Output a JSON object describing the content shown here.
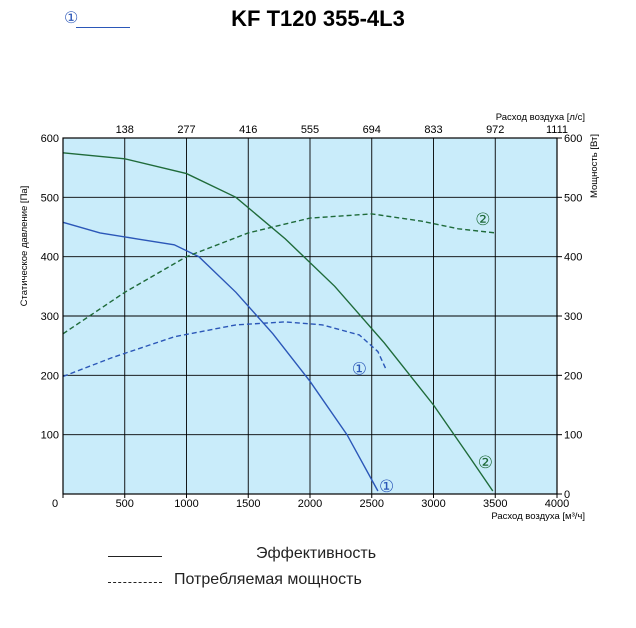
{
  "title": "KF T120 355-4L3",
  "legend_top": {
    "marker": "①"
  },
  "bottom_legend": {
    "efficiency": "Эффективность",
    "power": "Потребляемая мощность"
  },
  "colors": {
    "bg": "#c9ecfa",
    "blue": "#2b57b8",
    "green": "#1f6b3a",
    "grid": "#000000"
  },
  "chart_data": {
    "type": "line",
    "x_bottom": {
      "label": "Расход воздуха [м³/ч]",
      "ticks": [
        0,
        500,
        1000,
        1500,
        2000,
        2500,
        3000,
        3500,
        4000
      ],
      "range": [
        0,
        4000
      ]
    },
    "x_top": {
      "label": "Расход воздуха [л/с]",
      "ticks": [
        "138",
        "277",
        "416",
        "555",
        "694",
        "833",
        "972",
        "1111"
      ]
    },
    "y_left": {
      "label": "Статическое давление [Па]",
      "ticks": [
        100,
        200,
        300,
        400,
        500,
        600
      ],
      "range": [
        0,
        600
      ]
    },
    "y_right": {
      "label": "Мощность [Вт]",
      "ticks": [
        0,
        100,
        200,
        300,
        400,
        500,
        600
      ],
      "range": [
        0,
        600
      ]
    },
    "grid": true,
    "series": [
      {
        "kind": "pressure",
        "marker": "①",
        "color": "#2b57b8",
        "dashed": false,
        "points": [
          [
            0,
            458
          ],
          [
            300,
            440
          ],
          [
            600,
            430
          ],
          [
            900,
            420
          ],
          [
            1100,
            400
          ],
          [
            1400,
            340
          ],
          [
            1700,
            270
          ],
          [
            2000,
            190
          ],
          [
            2300,
            100
          ],
          [
            2550,
            5
          ]
        ]
      },
      {
        "kind": "pressure",
        "marker": "②",
        "color": "#1f6b3a",
        "dashed": false,
        "points": [
          [
            0,
            575
          ],
          [
            500,
            565
          ],
          [
            1000,
            540
          ],
          [
            1400,
            500
          ],
          [
            1800,
            430
          ],
          [
            2200,
            350
          ],
          [
            2600,
            255
          ],
          [
            3000,
            150
          ],
          [
            3300,
            60
          ],
          [
            3480,
            5
          ]
        ]
      },
      {
        "kind": "power",
        "marker": "①",
        "color": "#2b57b8",
        "dashed": true,
        "points": [
          [
            0,
            198
          ],
          [
            400,
            230
          ],
          [
            900,
            265
          ],
          [
            1400,
            285
          ],
          [
            1800,
            290
          ],
          [
            2100,
            285
          ],
          [
            2400,
            268
          ],
          [
            2550,
            240
          ],
          [
            2620,
            208
          ]
        ]
      },
      {
        "kind": "power",
        "marker": "②",
        "color": "#1f6b3a",
        "dashed": true,
        "points": [
          [
            0,
            270
          ],
          [
            500,
            340
          ],
          [
            1000,
            400
          ],
          [
            1500,
            440
          ],
          [
            2000,
            465
          ],
          [
            2500,
            472
          ],
          [
            2900,
            460
          ],
          [
            3200,
            447
          ],
          [
            3500,
            440
          ]
        ]
      }
    ],
    "annotations": [
      {
        "text": "①",
        "x": 2620,
        "y": 12,
        "color": "#2b57b8"
      },
      {
        "text": "②",
        "x": 3420,
        "y": 52,
        "color": "#1f6b3a"
      },
      {
        "text": "①",
        "x": 2400,
        "y": 210,
        "color": "#2b57b8"
      },
      {
        "text": "②",
        "x": 3400,
        "y": 462,
        "color": "#1f6b3a"
      }
    ]
  }
}
